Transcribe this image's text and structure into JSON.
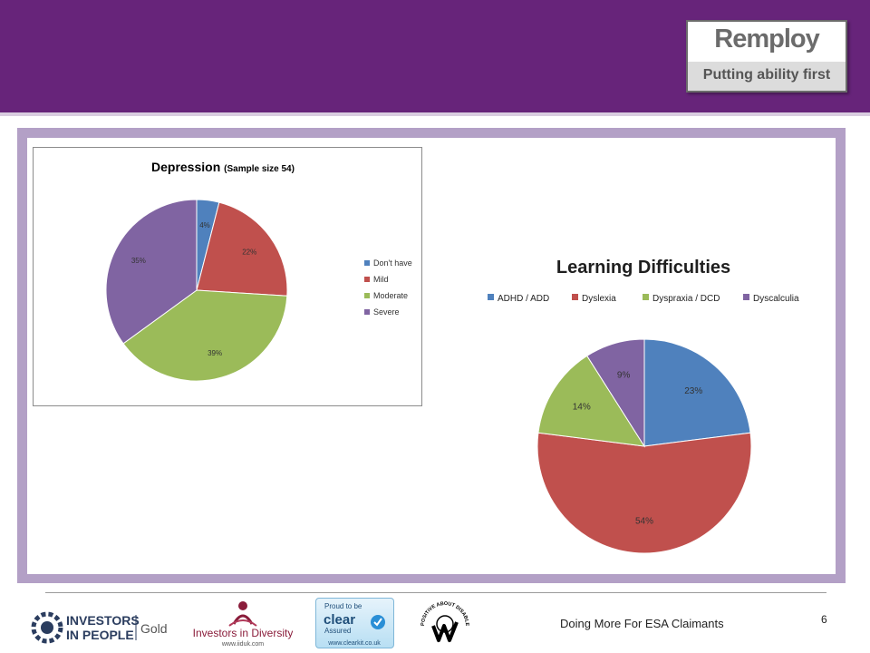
{
  "header": {
    "logo": {
      "name": "Remploy",
      "tagline": "Putting ability first"
    }
  },
  "chart_data": [
    {
      "type": "pie",
      "title": "Depression",
      "subtitle": "(Sample size 54)",
      "categories": [
        "Don't have",
        "Mild",
        "Moderate",
        "Severe"
      ],
      "values": [
        4,
        22,
        39,
        35
      ],
      "labels": [
        "4%",
        "22%",
        "39%",
        "35%"
      ],
      "colors": [
        "#4f81bd",
        "#c0504d",
        "#9bbb59",
        "#8064a2"
      ],
      "legend": "right"
    },
    {
      "type": "pie",
      "title": "Learning Difficulties",
      "categories": [
        "ADHD / ADD",
        "Dyslexia",
        "Dyspraxia / DCD",
        "Dyscalculia"
      ],
      "values": [
        23,
        54,
        14,
        9
      ],
      "labels": [
        "23%",
        "54%",
        "14%",
        "9%"
      ],
      "colors": [
        "#4f81bd",
        "#c0504d",
        "#9bbb59",
        "#8064a2"
      ],
      "legend": "top"
    }
  ],
  "footer": {
    "title": "Doing More For ESA Claimants",
    "page_number": "6",
    "logos": {
      "iip_line1": "INVESTORS",
      "iip_line2": "IN PEOPLE",
      "iip_level": "Gold",
      "iid_name": "Investors in Diversity",
      "iid_url": "www.iiduk.com",
      "clear_top": "Proud to be",
      "clear_word": "clear",
      "clear_assured": "Assured",
      "clear_url": "www.clearkit.co.uk",
      "pad_text": "POSITIVE ABOUT DISABLED PEOPLE"
    }
  }
}
